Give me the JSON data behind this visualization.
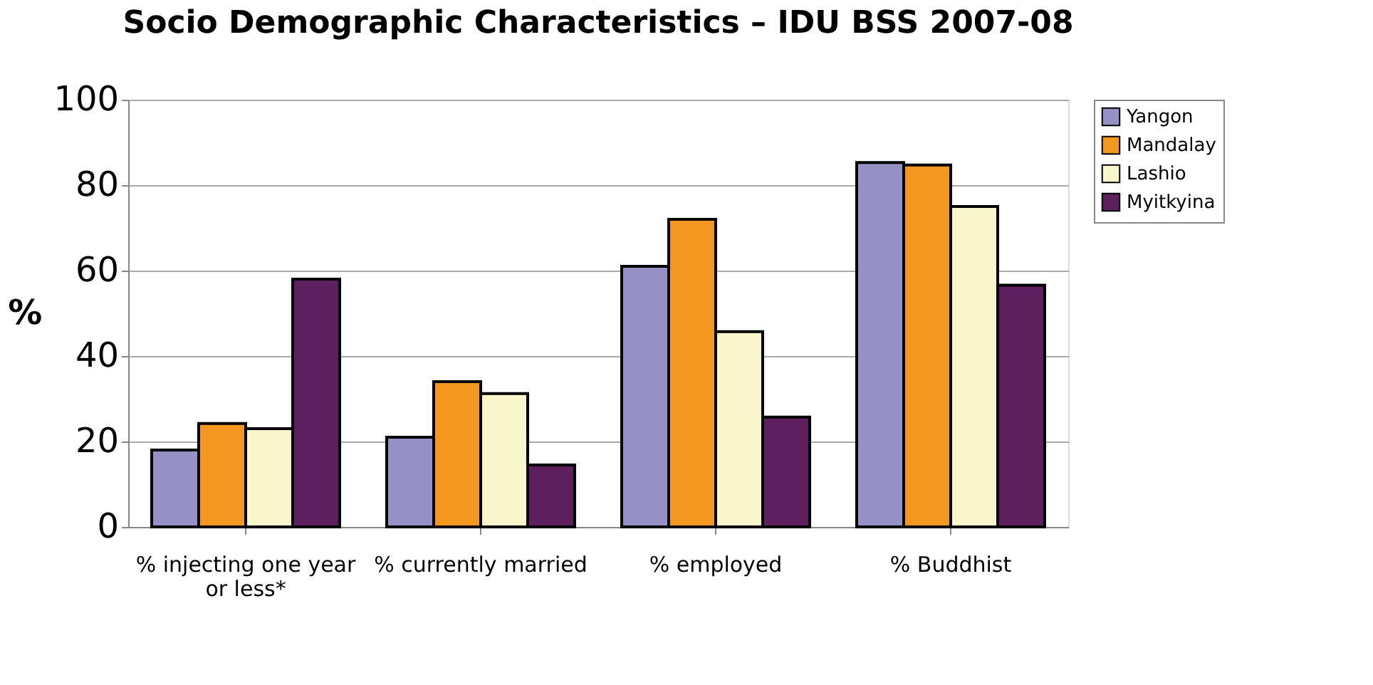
{
  "chart_data": {
    "type": "bar",
    "title": "Socio Demographic Characteristics – IDU BSS 2007-08",
    "ylabel": "%",
    "categories": [
      "% injecting one year or less*",
      "% currently married",
      "% employed",
      "% Buddhist"
    ],
    "series": [
      {
        "name": "Yangon",
        "color": "#9591c6",
        "values": [
          18,
          21,
          61,
          85.3
        ]
      },
      {
        "name": "Mandalay",
        "color": "#f39721",
        "values": [
          24.2,
          34,
          72,
          84.7
        ]
      },
      {
        "name": "Lashio",
        "color": "#faf6cc",
        "values": [
          23,
          31.2,
          45.7,
          75
        ]
      },
      {
        "name": "Myitkyina",
        "color": "#5e1f5f",
        "values": [
          58,
          14.5,
          25.7,
          56.6
        ]
      }
    ],
    "ylim": [
      0,
      100
    ],
    "yticks": [
      0,
      20,
      40,
      60,
      80,
      100
    ],
    "grid": "y",
    "legend": "right"
  }
}
